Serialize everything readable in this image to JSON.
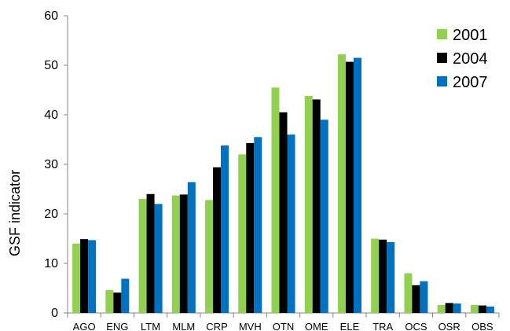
{
  "chart_data": {
    "type": "bar",
    "ylabel": "GSF indicator",
    "xlabel": "",
    "ylim": [
      0,
      60
    ],
    "yticks": [
      0,
      10,
      20,
      30,
      40,
      50,
      60
    ],
    "grid": false,
    "legend_position": "top-right",
    "categories": [
      "AGO",
      "ENG",
      "LTM",
      "MLM",
      "CRP",
      "MVH",
      "OTN",
      "OME",
      "ELE",
      "TRA",
      "OCS",
      "OSR",
      "OBS"
    ],
    "series": [
      {
        "name": "2001",
        "color": "#92d050",
        "values": [
          14.0,
          4.6,
          23.0,
          23.7,
          22.8,
          32.0,
          45.5,
          43.8,
          52.2,
          15.0,
          8.0,
          1.6,
          1.6
        ]
      },
      {
        "name": "2004",
        "color": "#000000",
        "values": [
          14.9,
          4.1,
          24.0,
          23.9,
          29.4,
          34.3,
          40.5,
          43.1,
          50.7,
          14.8,
          5.6,
          2.0,
          1.5
        ]
      },
      {
        "name": "2007",
        "color": "#0070c0",
        "values": [
          14.7,
          6.9,
          22.0,
          26.4,
          33.8,
          35.5,
          36.0,
          39.0,
          51.5,
          14.3,
          6.4,
          1.9,
          1.3
        ]
      }
    ]
  }
}
